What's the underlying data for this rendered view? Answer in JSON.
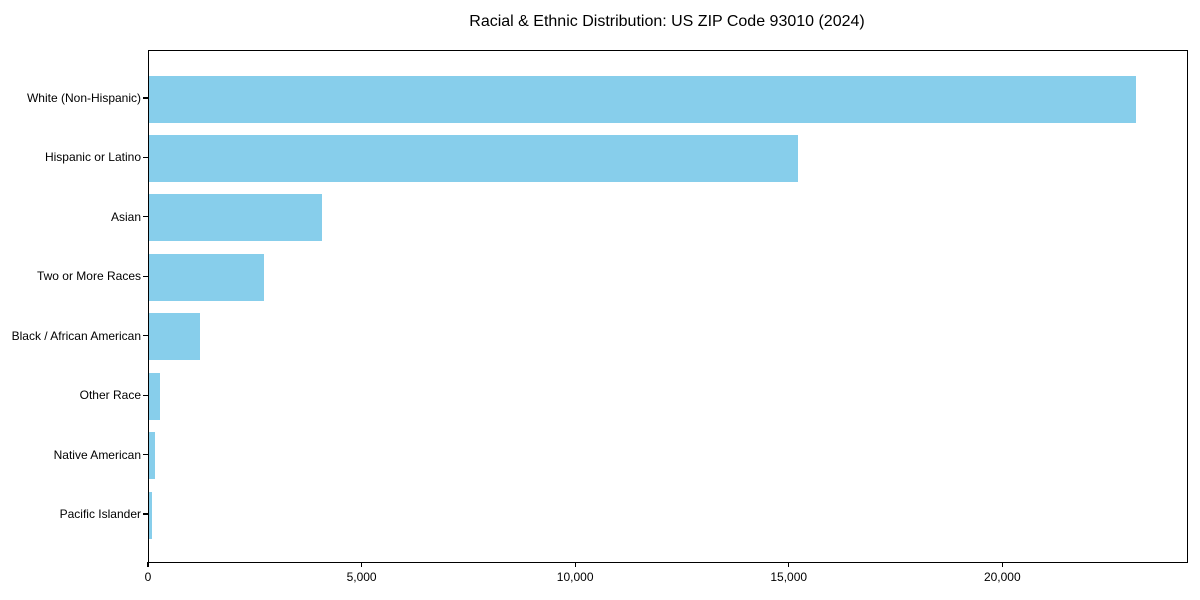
{
  "chart_data": {
    "type": "bar",
    "orientation": "horizontal",
    "title": "Racial & Ethnic Distribution: US ZIP Code 93010 (2024)",
    "categories": [
      "White (Non-Hispanic)",
      "Hispanic or Latino",
      "Asian",
      "Two or More Races",
      "Black / African American",
      "Other Race",
      "Native American",
      "Pacific Islander"
    ],
    "values": [
      23100,
      15200,
      4050,
      2700,
      1200,
      250,
      140,
      80
    ],
    "xlabel": "",
    "ylabel": "",
    "xlim": [
      0,
      24300
    ],
    "xticks": [
      0,
      5000,
      10000,
      15000,
      20000
    ],
    "xtick_labels": [
      "0",
      "5,000",
      "10,000",
      "15,000",
      "20,000"
    ],
    "bar_color": "#87CEEB",
    "frame_color": "#000000",
    "grid": false,
    "legend": null
  }
}
